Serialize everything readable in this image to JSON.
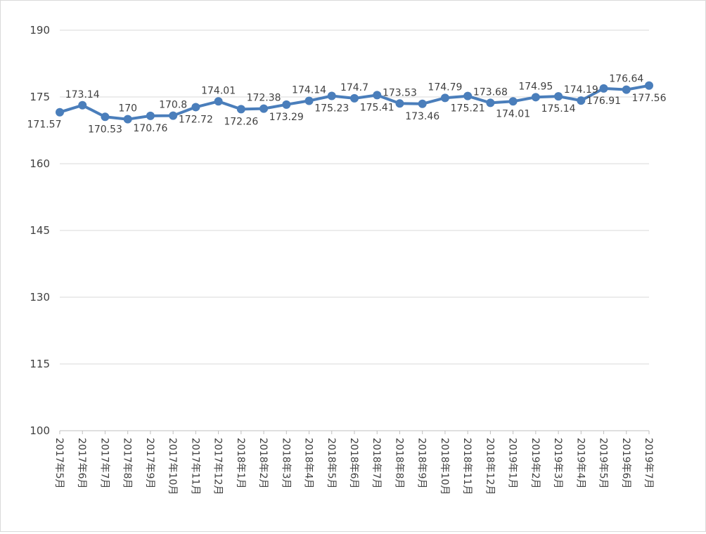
{
  "chart_data": {
    "type": "line",
    "title": "",
    "xlabel": "",
    "ylabel": "",
    "ylim": [
      100,
      190
    ],
    "yticks": [
      100,
      115,
      130,
      145,
      160,
      175,
      190
    ],
    "grid": true,
    "legend": "none",
    "colors": {
      "line": "#4a7ebb",
      "grid": "#d9d9d9",
      "text": "#404040"
    },
    "categories": [
      "2017年5月",
      "2017年6月",
      "2017年7月",
      "2017年8月",
      "2017年9月",
      "2017年10月",
      "2017年11月",
      "2017年12月",
      "2018年1月",
      "2018年2月",
      "2018年3月",
      "2018年4月",
      "2018年5月",
      "2018年6月",
      "2018年7月",
      "2018年8月",
      "2018年9月",
      "2018年10月",
      "2018年11月",
      "2018年12月",
      "2019年1月",
      "2019年2月",
      "2019年3月",
      "2019年4月",
      "2019年5月",
      "2019年6月",
      "2019年7月"
    ],
    "series": [
      {
        "values": [
          171.57,
          173.14,
          170.53,
          170,
          170.76,
          170.8,
          172.72,
          174.01,
          172.26,
          172.38,
          173.29,
          174.14,
          175.23,
          174.7,
          175.41,
          173.53,
          173.46,
          174.79,
          175.21,
          173.68,
          174.01,
          174.95,
          175.14,
          174.19,
          176.91,
          176.64,
          177.56
        ],
        "data_labels": [
          "171.57",
          "173.14",
          "170.53",
          "170",
          "170.76",
          "170.8",
          "172.72",
          "174.01",
          "172.26",
          "172.38",
          "173.29",
          "174.14",
          "175.23",
          "174.7",
          "175.41",
          "173.53",
          "173.46",
          "174.79",
          "175.21",
          "173.68",
          "174.01",
          "174.95",
          "175.14",
          "174.19",
          "176.91",
          "176.64",
          "177.56"
        ]
      }
    ]
  }
}
